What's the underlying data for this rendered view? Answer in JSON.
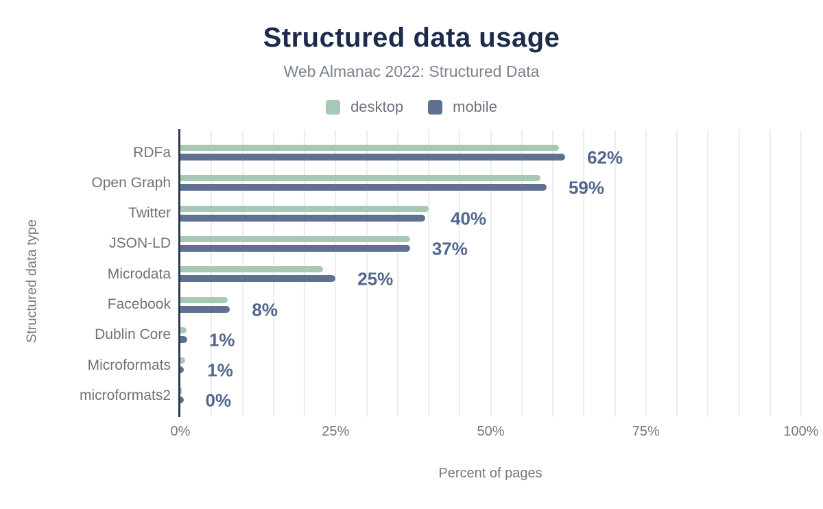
{
  "title": "Structured data usage",
  "subtitle": "Web Almanac 2022: Structured Data",
  "legend": [
    {
      "label": "desktop",
      "color": "#a6c8b5"
    },
    {
      "label": "mobile",
      "color": "#5e7190"
    }
  ],
  "colors": {
    "title": "#1c2b4a",
    "subtitle": "#7b828c",
    "desktop_bar": "#a6c8b5",
    "mobile_bar": "#5e7190",
    "value_label": "#52678d",
    "category_label": "#6f7377",
    "tick_label": "#75787c",
    "axis_line": "#2c3a4e",
    "gridline": "#ececec",
    "background": "#ffffff"
  },
  "chart_data": {
    "type": "bar",
    "orientation": "horizontal",
    "title": "Structured data usage",
    "subtitle": "Web Almanac 2022: Structured Data",
    "xlabel": "Percent of pages",
    "ylabel": "Structured data type",
    "xlim": [
      0,
      100
    ],
    "xticks": [
      "0%",
      "25%",
      "50%",
      "75%",
      "100%"
    ],
    "grid": "vertical gridlines every 5%",
    "legend_position": "top center",
    "categories": [
      "RDFa",
      "Open Graph",
      "Twitter",
      "JSON-LD",
      "Microdata",
      "Facebook",
      "Dublin Core",
      "Microformats",
      "microformats2"
    ],
    "series": [
      {
        "name": "desktop",
        "color": "#a6c8b5",
        "values": [
          61,
          58,
          40,
          37,
          23,
          7.6,
          1,
          0.8,
          0.2
        ]
      },
      {
        "name": "mobile",
        "color": "#5e7190",
        "values": [
          62,
          59,
          39.5,
          37,
          25,
          8,
          1.1,
          0.6,
          0.5
        ]
      }
    ],
    "bar_labels": [
      "62%",
      "59%",
      "40%",
      "37%",
      "25%",
      "8%",
      "1%",
      "1%",
      "0%"
    ]
  }
}
